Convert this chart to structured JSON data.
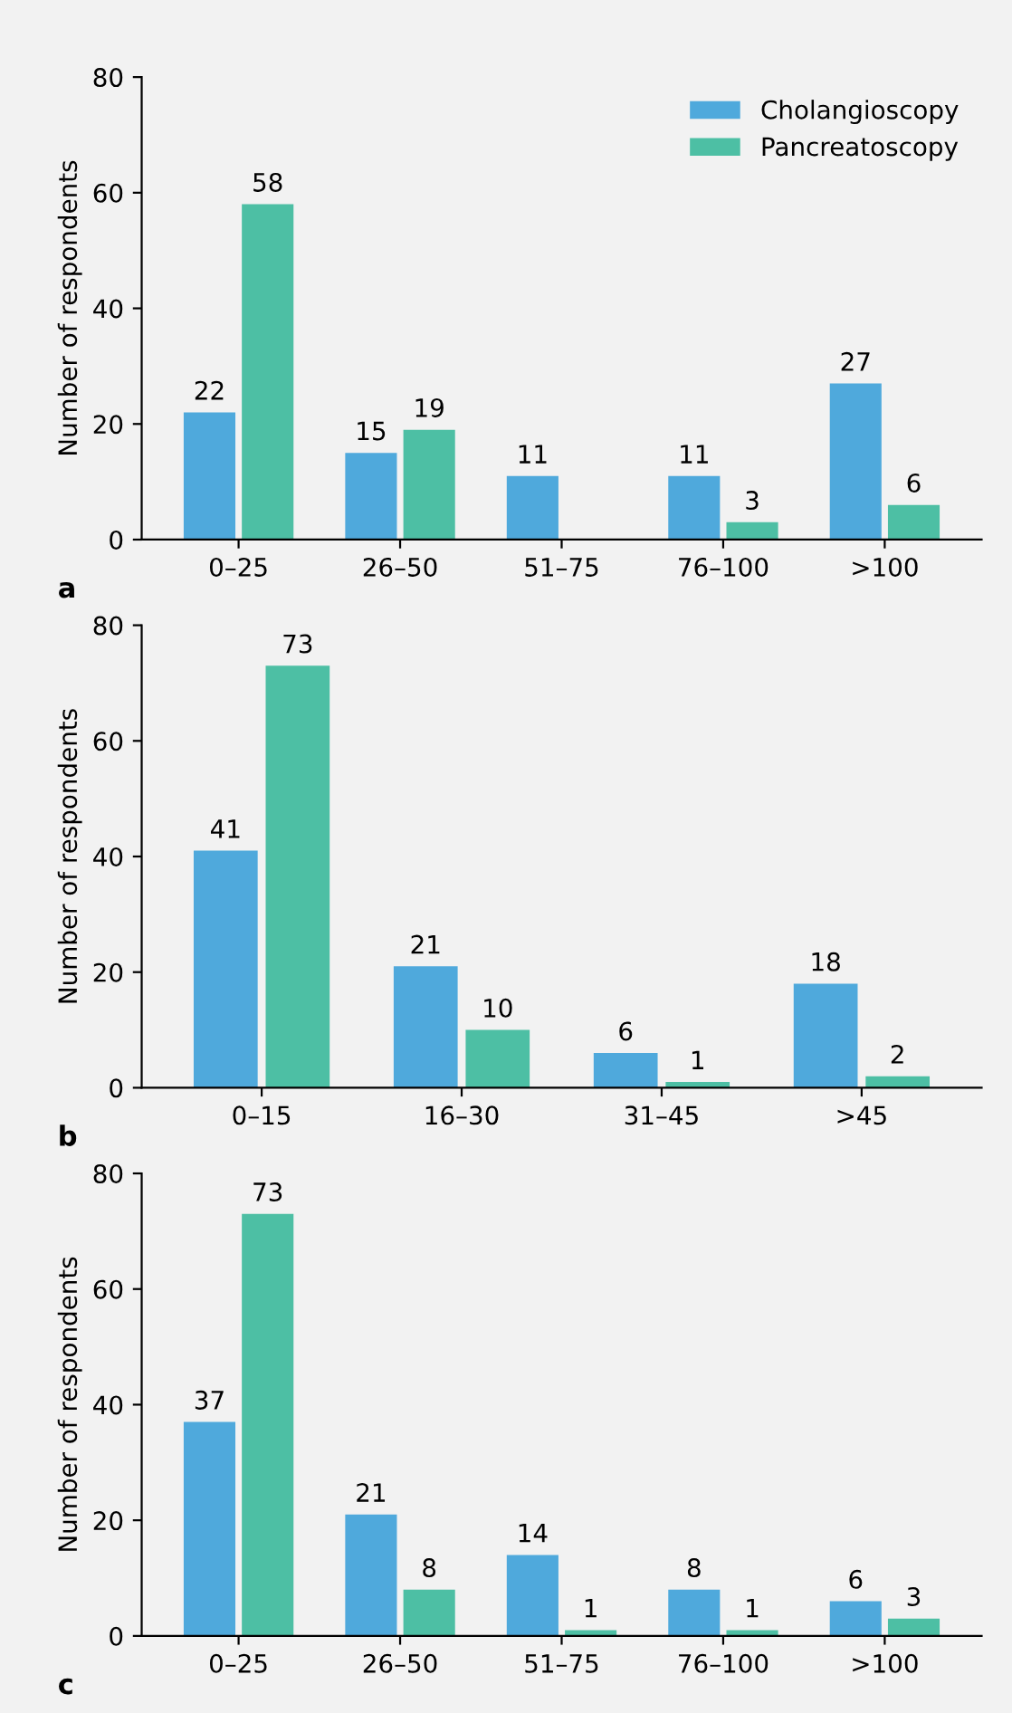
{
  "chart_data": [
    {
      "type": "bar",
      "categories": [
        "0–25",
        "26–50",
        "51–75",
        "76–100",
        ">100"
      ],
      "ylabel": "Number of respondents",
      "ylim": [
        0,
        80
      ],
      "yticks": [
        0,
        20,
        40,
        60,
        80
      ],
      "data_labels": true,
      "legend": "top right",
      "grid": false,
      "annotations": [
        "a"
      ],
      "series": [
        {
          "name": "Cholangioscopy",
          "color": "#4fa9dc",
          "values": [
            22,
            15,
            11,
            11,
            27
          ]
        },
        {
          "name": "Pancreatoscopy",
          "color": "#4dbfa4",
          "values": [
            58,
            19,
            null,
            3,
            6
          ]
        }
      ]
    },
    {
      "type": "bar",
      "categories": [
        "0–15",
        "16–30",
        "31–45",
        ">45"
      ],
      "ylabel": "Number of respondents",
      "ylim": [
        0,
        80
      ],
      "yticks": [
        0,
        20,
        40,
        60,
        80
      ],
      "data_labels": true,
      "legend": false,
      "grid": false,
      "annotations": [
        "b"
      ],
      "series": [
        {
          "color": "#4fa9dc",
          "values": [
            41,
            21,
            6,
            18
          ]
        },
        {
          "color": "#4dbfa4",
          "values": [
            73,
            10,
            1,
            2
          ]
        }
      ]
    },
    {
      "type": "bar",
      "categories": [
        "0–25",
        "26–50",
        "51–75",
        "76–100",
        ">100"
      ],
      "ylabel": "Number of respondents",
      "ylim": [
        0,
        80
      ],
      "yticks": [
        0,
        20,
        40,
        60,
        80
      ],
      "data_labels": true,
      "legend": false,
      "grid": false,
      "annotations": [
        "c"
      ],
      "series": [
        {
          "color": "#4fa9dc",
          "values": [
            37,
            21,
            14,
            8,
            6
          ]
        },
        {
          "color": "#4dbfa4",
          "values": [
            73,
            8,
            1,
            1,
            3
          ]
        }
      ]
    }
  ]
}
